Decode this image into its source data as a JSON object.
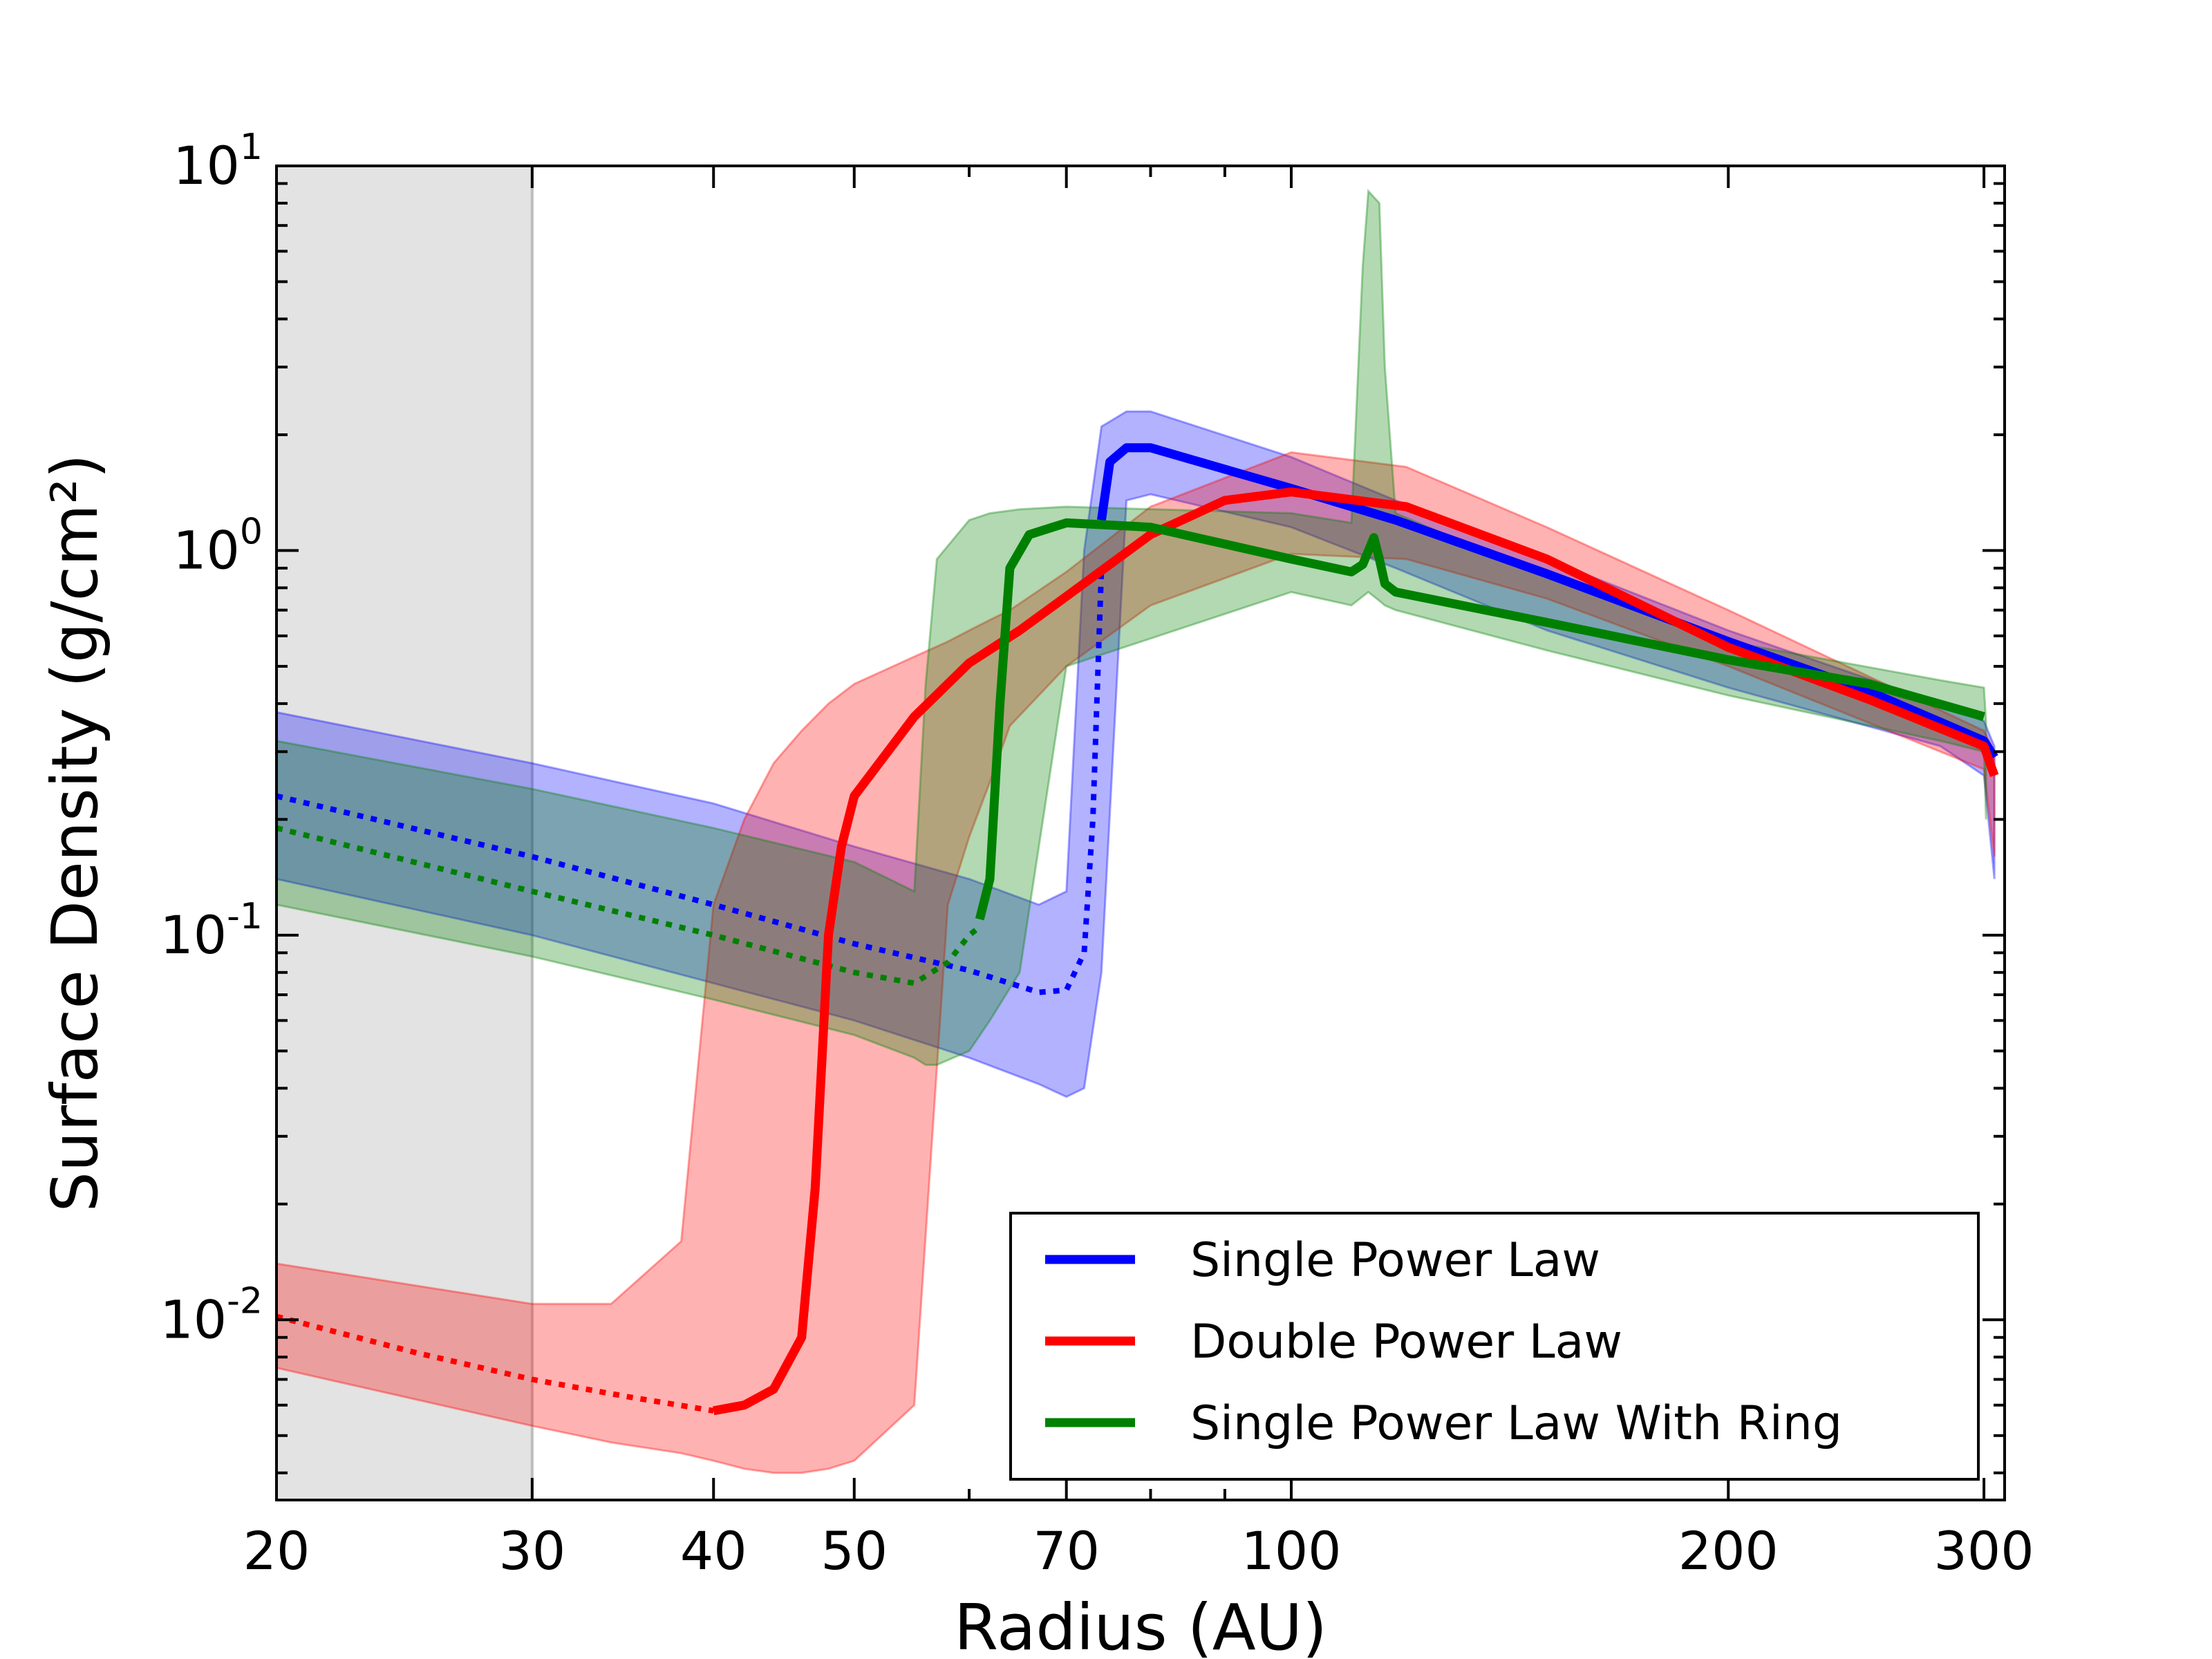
{
  "chart_data": {
    "type": "line",
    "title": "",
    "xlabel": "Radius (AU)",
    "ylabel": "Surface Density (g/cm²)",
    "xscale": "log",
    "yscale": "log",
    "xlim": [
      20,
      310
    ],
    "ylim": [
      0.0034,
      10
    ],
    "x_ticks": [
      20,
      30,
      40,
      50,
      70,
      100,
      200,
      300
    ],
    "y_ticks": [
      {
        "value": 0.01,
        "base": "10",
        "exp": "-2"
      },
      {
        "value": 0.1,
        "base": "10",
        "exp": "-1"
      },
      {
        "value": 1,
        "base": "10",
        "exp": "0"
      },
      {
        "value": 10,
        "base": "10",
        "exp": "1"
      }
    ],
    "shaded_region": {
      "x": [
        20,
        30
      ],
      "color": "#e3e3e3"
    },
    "grid": false,
    "legend_position": "lower-right",
    "series": [
      {
        "name": "Single Power Law",
        "color": "#0000ff",
        "band": {
          "x": [
            20,
            30,
            40,
            50,
            60,
            67,
            70,
            72,
            74,
            77,
            80,
            100,
            118,
            150,
            200,
            280,
            300,
            305
          ],
          "upper": [
            0.38,
            0.28,
            0.22,
            0.17,
            0.14,
            0.12,
            0.13,
            1.0,
            2.1,
            2.3,
            2.3,
            1.75,
            1.35,
            0.95,
            0.62,
            0.4,
            0.36,
            0.31
          ],
          "lower": [
            0.14,
            0.1,
            0.075,
            0.06,
            0.048,
            0.041,
            0.038,
            0.04,
            0.08,
            1.35,
            1.4,
            1.15,
            0.9,
            0.62,
            0.44,
            0.31,
            0.26,
            0.14
          ]
        },
        "dotted": {
          "x": [
            20,
            30,
            40,
            50,
            60,
            67,
            70,
            72,
            73,
            74
          ],
          "y": [
            0.23,
            0.16,
            0.12,
            0.095,
            0.081,
            0.071,
            0.072,
            0.09,
            0.2,
            0.9
          ]
        },
        "solid": {
          "x": [
            74,
            75,
            77,
            80,
            100,
            118,
            150,
            200,
            250,
            300,
            305
          ],
          "y": [
            1.2,
            1.7,
            1.85,
            1.85,
            1.45,
            1.2,
            0.87,
            0.58,
            0.43,
            0.32,
            0.29
          ]
        }
      },
      {
        "name": "Double Power Law",
        "color": "#ff0000",
        "band": {
          "x": [
            20,
            30,
            34,
            38,
            40,
            42,
            44,
            46,
            48,
            50,
            55,
            58,
            60,
            62,
            64,
            70,
            80,
            100,
            120,
            150,
            200,
            300,
            305
          ],
          "upper": [
            0.014,
            0.011,
            0.011,
            0.016,
            0.12,
            0.2,
            0.28,
            0.34,
            0.4,
            0.45,
            0.53,
            0.58,
            0.62,
            0.66,
            0.7,
            0.88,
            1.3,
            1.8,
            1.65,
            1.15,
            0.7,
            0.34,
            0.3
          ],
          "lower": [
            0.0075,
            0.0053,
            0.0048,
            0.0045,
            0.0043,
            0.0041,
            0.004,
            0.004,
            0.0041,
            0.0043,
            0.006,
            0.12,
            0.18,
            0.25,
            0.35,
            0.5,
            0.72,
            0.98,
            0.95,
            0.75,
            0.5,
            0.27,
            0.16
          ]
        },
        "dotted": {
          "x": [
            20,
            25,
            30,
            35,
            40
          ],
          "y": [
            0.0102,
            0.0082,
            0.007,
            0.0063,
            0.0058
          ]
        },
        "solid": {
          "x": [
            40,
            42,
            44,
            46,
            47,
            48,
            49,
            50,
            55,
            60,
            65,
            70,
            80,
            90,
            100,
            120,
            150,
            200,
            250,
            300,
            305
          ],
          "y": [
            0.0058,
            0.006,
            0.0066,
            0.009,
            0.022,
            0.1,
            0.17,
            0.23,
            0.37,
            0.51,
            0.62,
            0.76,
            1.1,
            1.35,
            1.42,
            1.3,
            0.95,
            0.56,
            0.41,
            0.31,
            0.26
          ]
        }
      },
      {
        "name": "Single Power Law With Ring",
        "color": "#008000",
        "band": {
          "x": [
            20,
            30,
            40,
            50,
            55,
            56,
            57,
            60,
            62,
            65,
            70,
            100,
            110,
            112,
            113,
            115,
            116,
            118,
            150,
            200,
            280,
            300,
            301
          ],
          "upper": [
            0.32,
            0.24,
            0.19,
            0.155,
            0.13,
            0.45,
            0.95,
            1.2,
            1.25,
            1.28,
            1.3,
            1.25,
            1.18,
            5.5,
            8.6,
            8.0,
            3.0,
            1.25,
            0.85,
            0.58,
            0.46,
            0.44,
            0.36
          ],
          "lower": [
            0.12,
            0.088,
            0.068,
            0.055,
            0.048,
            0.046,
            0.046,
            0.05,
            0.06,
            0.08,
            0.5,
            0.78,
            0.72,
            0.76,
            0.78,
            0.74,
            0.72,
            0.7,
            0.55,
            0.42,
            0.32,
            0.3,
            0.2
          ]
        },
        "dotted": {
          "x": [
            20,
            30,
            40,
            50,
            55,
            58,
            60,
            61
          ],
          "y": [
            0.19,
            0.13,
            0.1,
            0.08,
            0.075,
            0.085,
            0.1,
            0.105
          ]
        },
        "solid": {
          "x": [
            61,
            62,
            63,
            64,
            66,
            70,
            80,
            100,
            110,
            112,
            114,
            115,
            116,
            118,
            150,
            200,
            250,
            300
          ],
          "y": [
            0.11,
            0.14,
            0.4,
            0.9,
            1.1,
            1.18,
            1.15,
            0.95,
            0.88,
            0.92,
            1.08,
            0.95,
            0.82,
            0.78,
            0.65,
            0.52,
            0.45,
            0.37
          ]
        }
      }
    ]
  }
}
